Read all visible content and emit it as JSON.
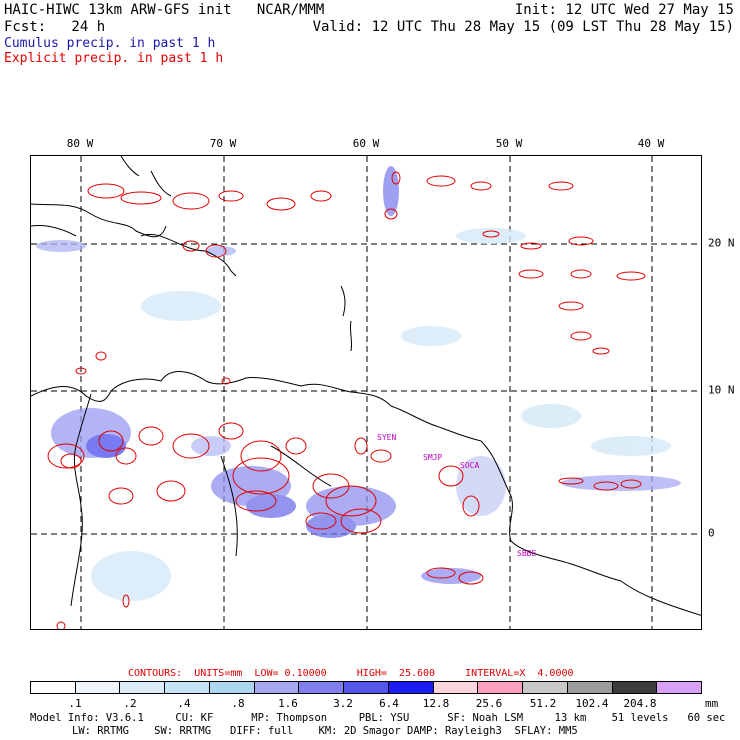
{
  "header": {
    "title": "HAIC-HIWC 13km ARW-GFS init   NCAR/MMM",
    "init": "Init: 12 UTC Wed 27 May 15",
    "forecast": "Fcst:   24 h",
    "valid": "Valid: 12 UTC Thu 28 May 15 (09 LST Thu 28 May 15)",
    "cumulus_label": "Cumulus precip. in past 1 h",
    "explicit_label": "Explicit precip. in past 1 h",
    "cumulus_color": "#1a1aa6",
    "explicit_color": "#e00000"
  },
  "map": {
    "lon_labels": [
      "80 W",
      "70 W",
      "60 W",
      "50 W",
      "40 W"
    ],
    "lat_labels": [
      "20 N",
      "10 N",
      "0"
    ],
    "stations": [
      "SYEN",
      "SMJP",
      "SOCA",
      "SBBE"
    ]
  },
  "contours": {
    "text": "CONTOURS:  UNITS=mm  LOW= 0.10000     HIGH=  25.600     INTERVAL=X  4.0000"
  },
  "scale": {
    "colors": [
      "#ffffff",
      "#eef6fc",
      "#dcedf9",
      "#c6e4f5",
      "#aed6f0",
      "#a5a8ef",
      "#7f80ec",
      "#5556f0",
      "#1c1cf7",
      "#fbd6dc",
      "#f9a0c0",
      "#c8c8c8",
      "#9c9c9c",
      "#3c3c3c",
      "#d9a0f8"
    ],
    "labels": [
      ".1",
      ".2",
      ".4",
      ".8",
      "1.6",
      "3.2",
      "6.4",
      "12.8",
      "25.6",
      "51.2",
      "102.4",
      "204.8"
    ],
    "units": "mm"
  },
  "model_info": {
    "line1": "Model Info: V3.6.1     CU: KF      MP: Thompson     PBL: YSU      SF: Noah LSM     13 km    51 levels   60 sec",
    "line2": "LW: RRTMG    SW: RRTMG   DIFF: full    KM: 2D Smagor DAMP: Rayleigh3  SFLAY: MM5"
  }
}
